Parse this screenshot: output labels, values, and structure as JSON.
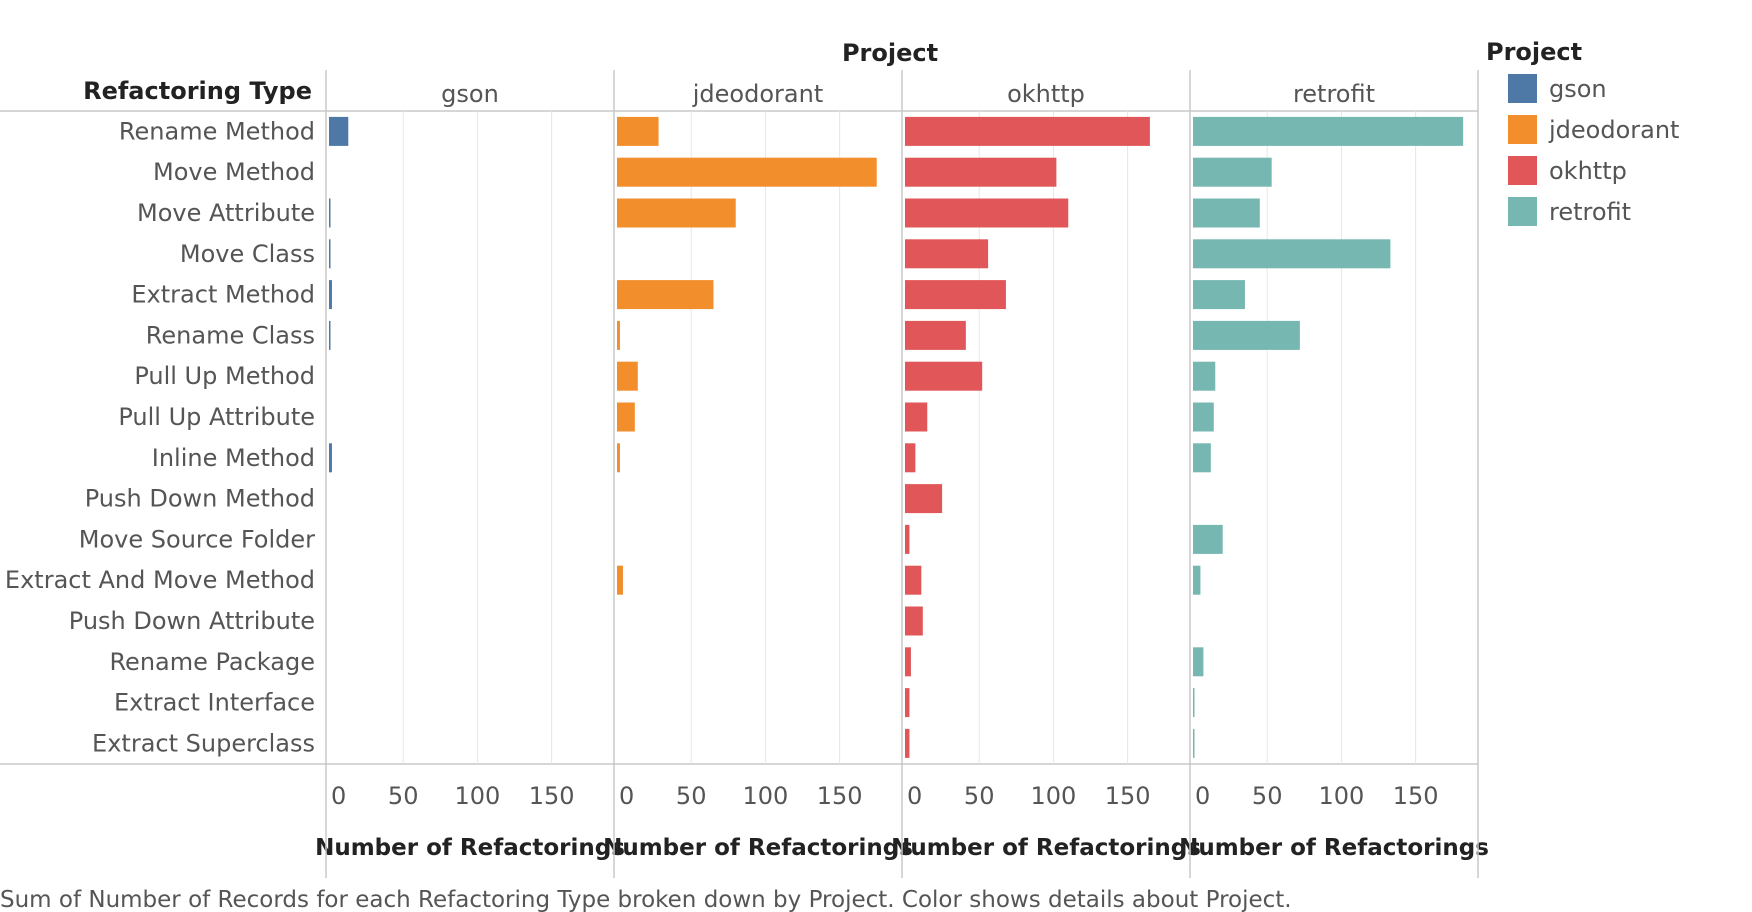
{
  "chart_data": {
    "type": "bar",
    "orientation": "horizontal",
    "facet_title": "Project",
    "row_header": "Refactoring Type",
    "xlabel": "Number of Refactorings",
    "xticks": [
      0,
      50,
      100,
      150
    ],
    "xlim": [
      0,
      190
    ],
    "grid": true,
    "categories": [
      "Rename Method",
      "Move Method",
      "Move Attribute",
      "Move Class",
      "Extract Method",
      "Rename Class",
      "Pull Up Method",
      "Pull Up Attribute",
      "Inline Method",
      "Push Down Method",
      "Move Source Folder",
      "Extract And Move Method",
      "Push Down Attribute",
      "Rename Package",
      "Extract Interface",
      "Extract Superclass"
    ],
    "series": [
      {
        "name": "gson",
        "color": "#4e79a7",
        "values": [
          13,
          0,
          1,
          1,
          2,
          1,
          0,
          0,
          2,
          0,
          0,
          0,
          0,
          0,
          0,
          0
        ]
      },
      {
        "name": "jdeodorant",
        "color": "#f28e2b",
        "values": [
          28,
          175,
          80,
          0,
          65,
          2,
          14,
          12,
          2,
          0,
          0,
          4,
          0,
          0,
          0,
          0
        ]
      },
      {
        "name": "okhttp",
        "color": "#e15759",
        "values": [
          165,
          102,
          110,
          56,
          68,
          41,
          52,
          15,
          7,
          25,
          3,
          11,
          12,
          4,
          3,
          3
        ]
      },
      {
        "name": "retrofit",
        "color": "#76b7b2",
        "values": [
          182,
          53,
          45,
          133,
          35,
          72,
          15,
          14,
          12,
          0,
          20,
          5,
          0,
          7,
          1,
          1
        ]
      }
    ],
    "legend": {
      "title": "Project",
      "position": "right"
    },
    "caption": "Sum of Number of Records for each Refactoring Type broken down by Project.  Color shows details about Project."
  }
}
